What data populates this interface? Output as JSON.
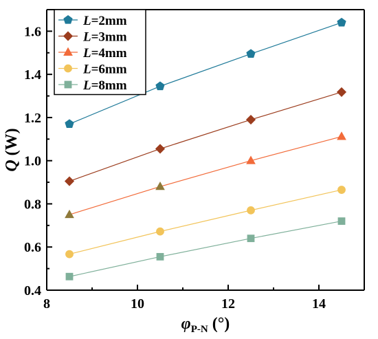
{
  "chart_data": {
    "type": "line",
    "title": "",
    "x": [
      8.5,
      10.5,
      12.5,
      14.5
    ],
    "xlim": [
      8,
      15
    ],
    "ylim": [
      0.4,
      1.7
    ],
    "xticks": [
      "8",
      "10",
      "12",
      "14"
    ],
    "yticks": [
      "0.4",
      "0.6",
      "0.8",
      "1.0",
      "1.2",
      "1.4",
      "1.6"
    ],
    "xlabel": {
      "symbol": "φ",
      "subscript": "P-N",
      "unit": " (°)"
    },
    "ylabel": {
      "symbol": "Q",
      "unit": " (W)"
    },
    "grid": false,
    "legend_position": "top-left",
    "series": [
      {
        "name": "L=2mm",
        "var": "L",
        "rest": "=2mm",
        "marker": "pentagon",
        "color": "#1f7a99",
        "values": [
          1.17,
          1.345,
          1.495,
          1.64
        ]
      },
      {
        "name": "L=3mm",
        "var": "L",
        "rest": "=3mm",
        "marker": "diamond",
        "color": "#9c3d1e",
        "values": [
          0.905,
          1.055,
          1.19,
          1.318
        ]
      },
      {
        "name": "L=4mm",
        "var": "L",
        "rest": "=4mm",
        "marker": "triangle",
        "color": "#f26b3a",
        "values": [
          0.75,
          0.88,
          1.0,
          1.112
        ],
        "marker_colors": [
          "#8f7a3a",
          "#8f7a3a",
          "#f26b3a",
          "#f26b3a"
        ]
      },
      {
        "name": "L=6mm",
        "var": "L",
        "rest": "=6mm",
        "marker": "circle",
        "color": "#f2c45a",
        "values": [
          0.567,
          0.672,
          0.77,
          0.865
        ]
      },
      {
        "name": "L=8mm",
        "var": "L",
        "rest": "=8mm",
        "marker": "square",
        "color": "#7fb09a",
        "values": [
          0.463,
          0.555,
          0.64,
          0.72
        ]
      }
    ]
  }
}
